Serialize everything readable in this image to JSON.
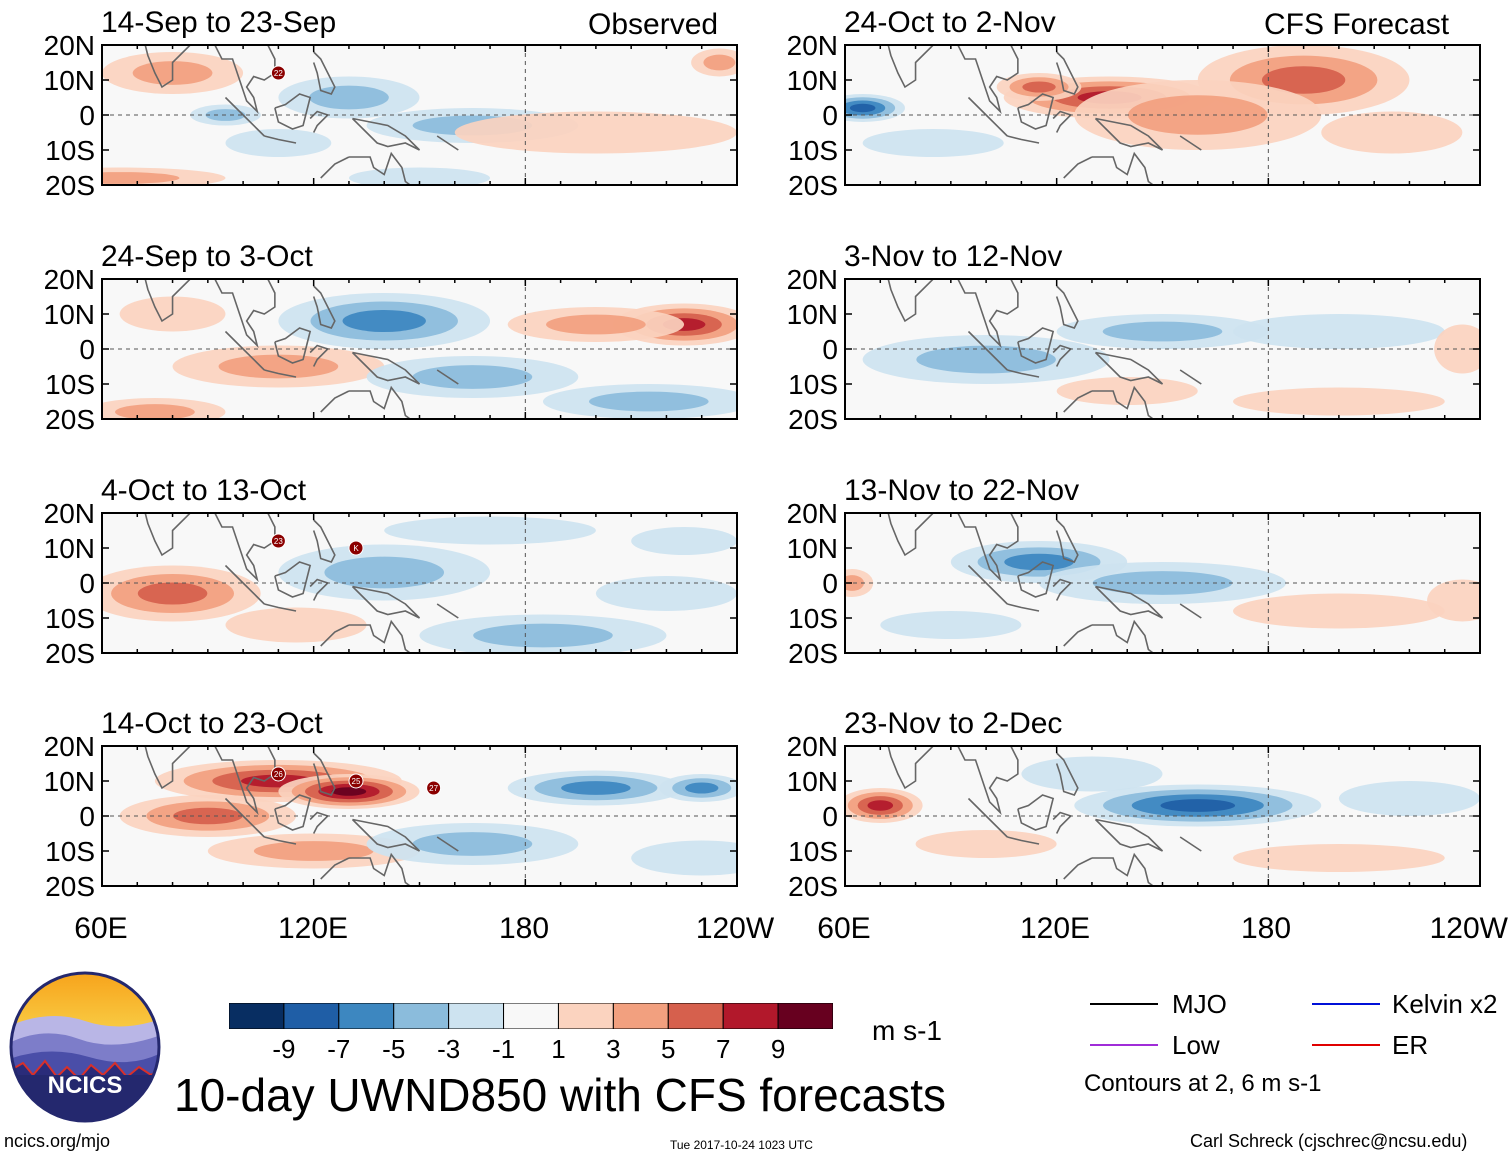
{
  "header": {
    "left_label": "Observed",
    "right_label": "CFS Forecast"
  },
  "chart_data": {
    "type": "heatmap",
    "title": "10-day UWND850 with CFS forecasts",
    "units": "m s-1",
    "x_ticks": [
      "60E",
      "120E",
      "180",
      "120W"
    ],
    "y_ticks": [
      "20N",
      "10N",
      "0",
      "10S",
      "20S"
    ],
    "lon_range": [
      60,
      240
    ],
    "lat_range": [
      -20,
      20
    ],
    "panels": [
      {
        "id": "obs1",
        "column": "observed",
        "title": "14-Sep to 23-Sep",
        "blobs": [
          [
            130,
            5,
            20,
            6,
            -3
          ],
          [
            95,
            0,
            10,
            3,
            -4
          ],
          [
            165,
            -3,
            30,
            5,
            -3
          ],
          [
            80,
            12,
            20,
            6,
            3
          ],
          [
            200,
            -5,
            40,
            6,
            2
          ],
          [
            235,
            15,
            8,
            4,
            4
          ],
          [
            65,
            -18,
            30,
            3,
            4
          ],
          [
            150,
            -18,
            20,
            3,
            -2
          ],
          [
            110,
            -8,
            15,
            4,
            -2
          ]
        ],
        "storms": [
          "22"
        ]
      },
      {
        "id": "obs2",
        "column": "observed",
        "title": "24-Sep to 3-Oct",
        "blobs": [
          [
            225,
            7,
            20,
            6,
            8
          ],
          [
            200,
            7,
            25,
            5,
            4
          ],
          [
            140,
            8,
            30,
            8,
            -5
          ],
          [
            110,
            -5,
            30,
            6,
            4
          ],
          [
            75,
            -18,
            20,
            4,
            3
          ],
          [
            165,
            -8,
            30,
            6,
            -3
          ],
          [
            80,
            10,
            15,
            5,
            2
          ],
          [
            215,
            -15,
            30,
            5,
            -3
          ]
        ],
        "storms": []
      },
      {
        "id": "obs3",
        "column": "observed",
        "title": "4-Oct to 13-Oct",
        "blobs": [
          [
            80,
            -3,
            25,
            8,
            5
          ],
          [
            140,
            3,
            30,
            8,
            -3
          ],
          [
            185,
            -15,
            35,
            6,
            -3
          ],
          [
            115,
            -12,
            20,
            5,
            2
          ],
          [
            170,
            15,
            30,
            4,
            -1
          ],
          [
            220,
            -3,
            20,
            5,
            -2
          ],
          [
            225,
            12,
            15,
            4,
            -1
          ]
        ],
        "storms": [
          "23",
          "K"
        ]
      },
      {
        "id": "obs4",
        "column": "observed",
        "title": "14-Oct to 23-Oct",
        "blobs": [
          [
            110,
            10,
            35,
            6,
            8
          ],
          [
            130,
            7,
            20,
            5,
            9
          ],
          [
            90,
            0,
            25,
            6,
            5
          ],
          [
            120,
            -10,
            30,
            5,
            4
          ],
          [
            200,
            8,
            25,
            5,
            -5
          ],
          [
            230,
            8,
            12,
            4,
            -6
          ],
          [
            165,
            -8,
            30,
            6,
            -3
          ],
          [
            230,
            -12,
            20,
            5,
            -2
          ]
        ],
        "storms": [
          "26",
          "25",
          "27"
        ]
      },
      {
        "id": "fc1",
        "column": "forecast",
        "title": "24-Oct to 2-Nov",
        "blobs": [
          [
            190,
            10,
            30,
            10,
            6
          ],
          [
            135,
            5,
            30,
            6,
            7
          ],
          [
            115,
            8,
            12,
            4,
            6
          ],
          [
            160,
            0,
            35,
            10,
            4
          ],
          [
            65,
            2,
            12,
            4,
            -7
          ],
          [
            85,
            -8,
            20,
            4,
            -2
          ],
          [
            215,
            -5,
            20,
            6,
            2
          ]
        ],
        "storms": []
      },
      {
        "id": "fc2",
        "column": "forecast",
        "title": "3-Nov to 12-Nov",
        "blobs": [
          [
            100,
            -3,
            35,
            7,
            -3
          ],
          [
            150,
            5,
            30,
            5,
            -3
          ],
          [
            200,
            5,
            30,
            5,
            -1
          ],
          [
            235,
            0,
            8,
            7,
            2
          ],
          [
            200,
            -15,
            30,
            4,
            2
          ],
          [
            140,
            -12,
            20,
            4,
            1
          ]
        ],
        "storms": []
      },
      {
        "id": "fc3",
        "column": "forecast",
        "title": "13-Nov to 22-Nov",
        "blobs": [
          [
            115,
            6,
            25,
            6,
            -5
          ],
          [
            150,
            0,
            35,
            6,
            -3
          ],
          [
            200,
            -8,
            30,
            5,
            2
          ],
          [
            62,
            0,
            6,
            4,
            3
          ],
          [
            235,
            -5,
            10,
            6,
            2
          ],
          [
            90,
            -12,
            20,
            4,
            -1
          ]
        ],
        "storms": []
      },
      {
        "id": "fc4",
        "column": "forecast",
        "title": "23-Nov to 2-Dec",
        "blobs": [
          [
            70,
            3,
            12,
            5,
            7
          ],
          [
            160,
            3,
            35,
            6,
            -7
          ],
          [
            100,
            -8,
            20,
            4,
            2
          ],
          [
            220,
            5,
            20,
            5,
            -2
          ],
          [
            200,
            -12,
            30,
            4,
            2
          ],
          [
            130,
            12,
            20,
            5,
            -2
          ]
        ],
        "storms": []
      }
    ]
  },
  "colorbar": {
    "labels": [
      "-9",
      "-7",
      "-5",
      "-3",
      "-1",
      "1",
      "3",
      "5",
      "7",
      "9"
    ],
    "colors": [
      "#082e62",
      "#1f5ea6",
      "#3d87c0",
      "#8bbcdc",
      "#cde3f0",
      "#f8f8f8",
      "#fbd3bf",
      "#f2a07f",
      "#d6604d",
      "#b2182b",
      "#67001f"
    ],
    "units": "m s-1"
  },
  "legend": {
    "items": [
      {
        "label": "MJO",
        "color": "#000000"
      },
      {
        "label": "Kelvin x2",
        "color": "#0010d8"
      },
      {
        "label": "Low",
        "color": "#a02cd8"
      },
      {
        "label": "ER",
        "color": "#e00000"
      }
    ],
    "note": "Contours at 2, 6 m s-1"
  },
  "logo": {
    "text": "NCICS"
  },
  "footer": {
    "url": "ncics.org/mjo",
    "timestamp": "Tue 2017-10-24 1023 UTC",
    "credit": "Carl Schreck (cjschrec@ncsu.edu)"
  }
}
